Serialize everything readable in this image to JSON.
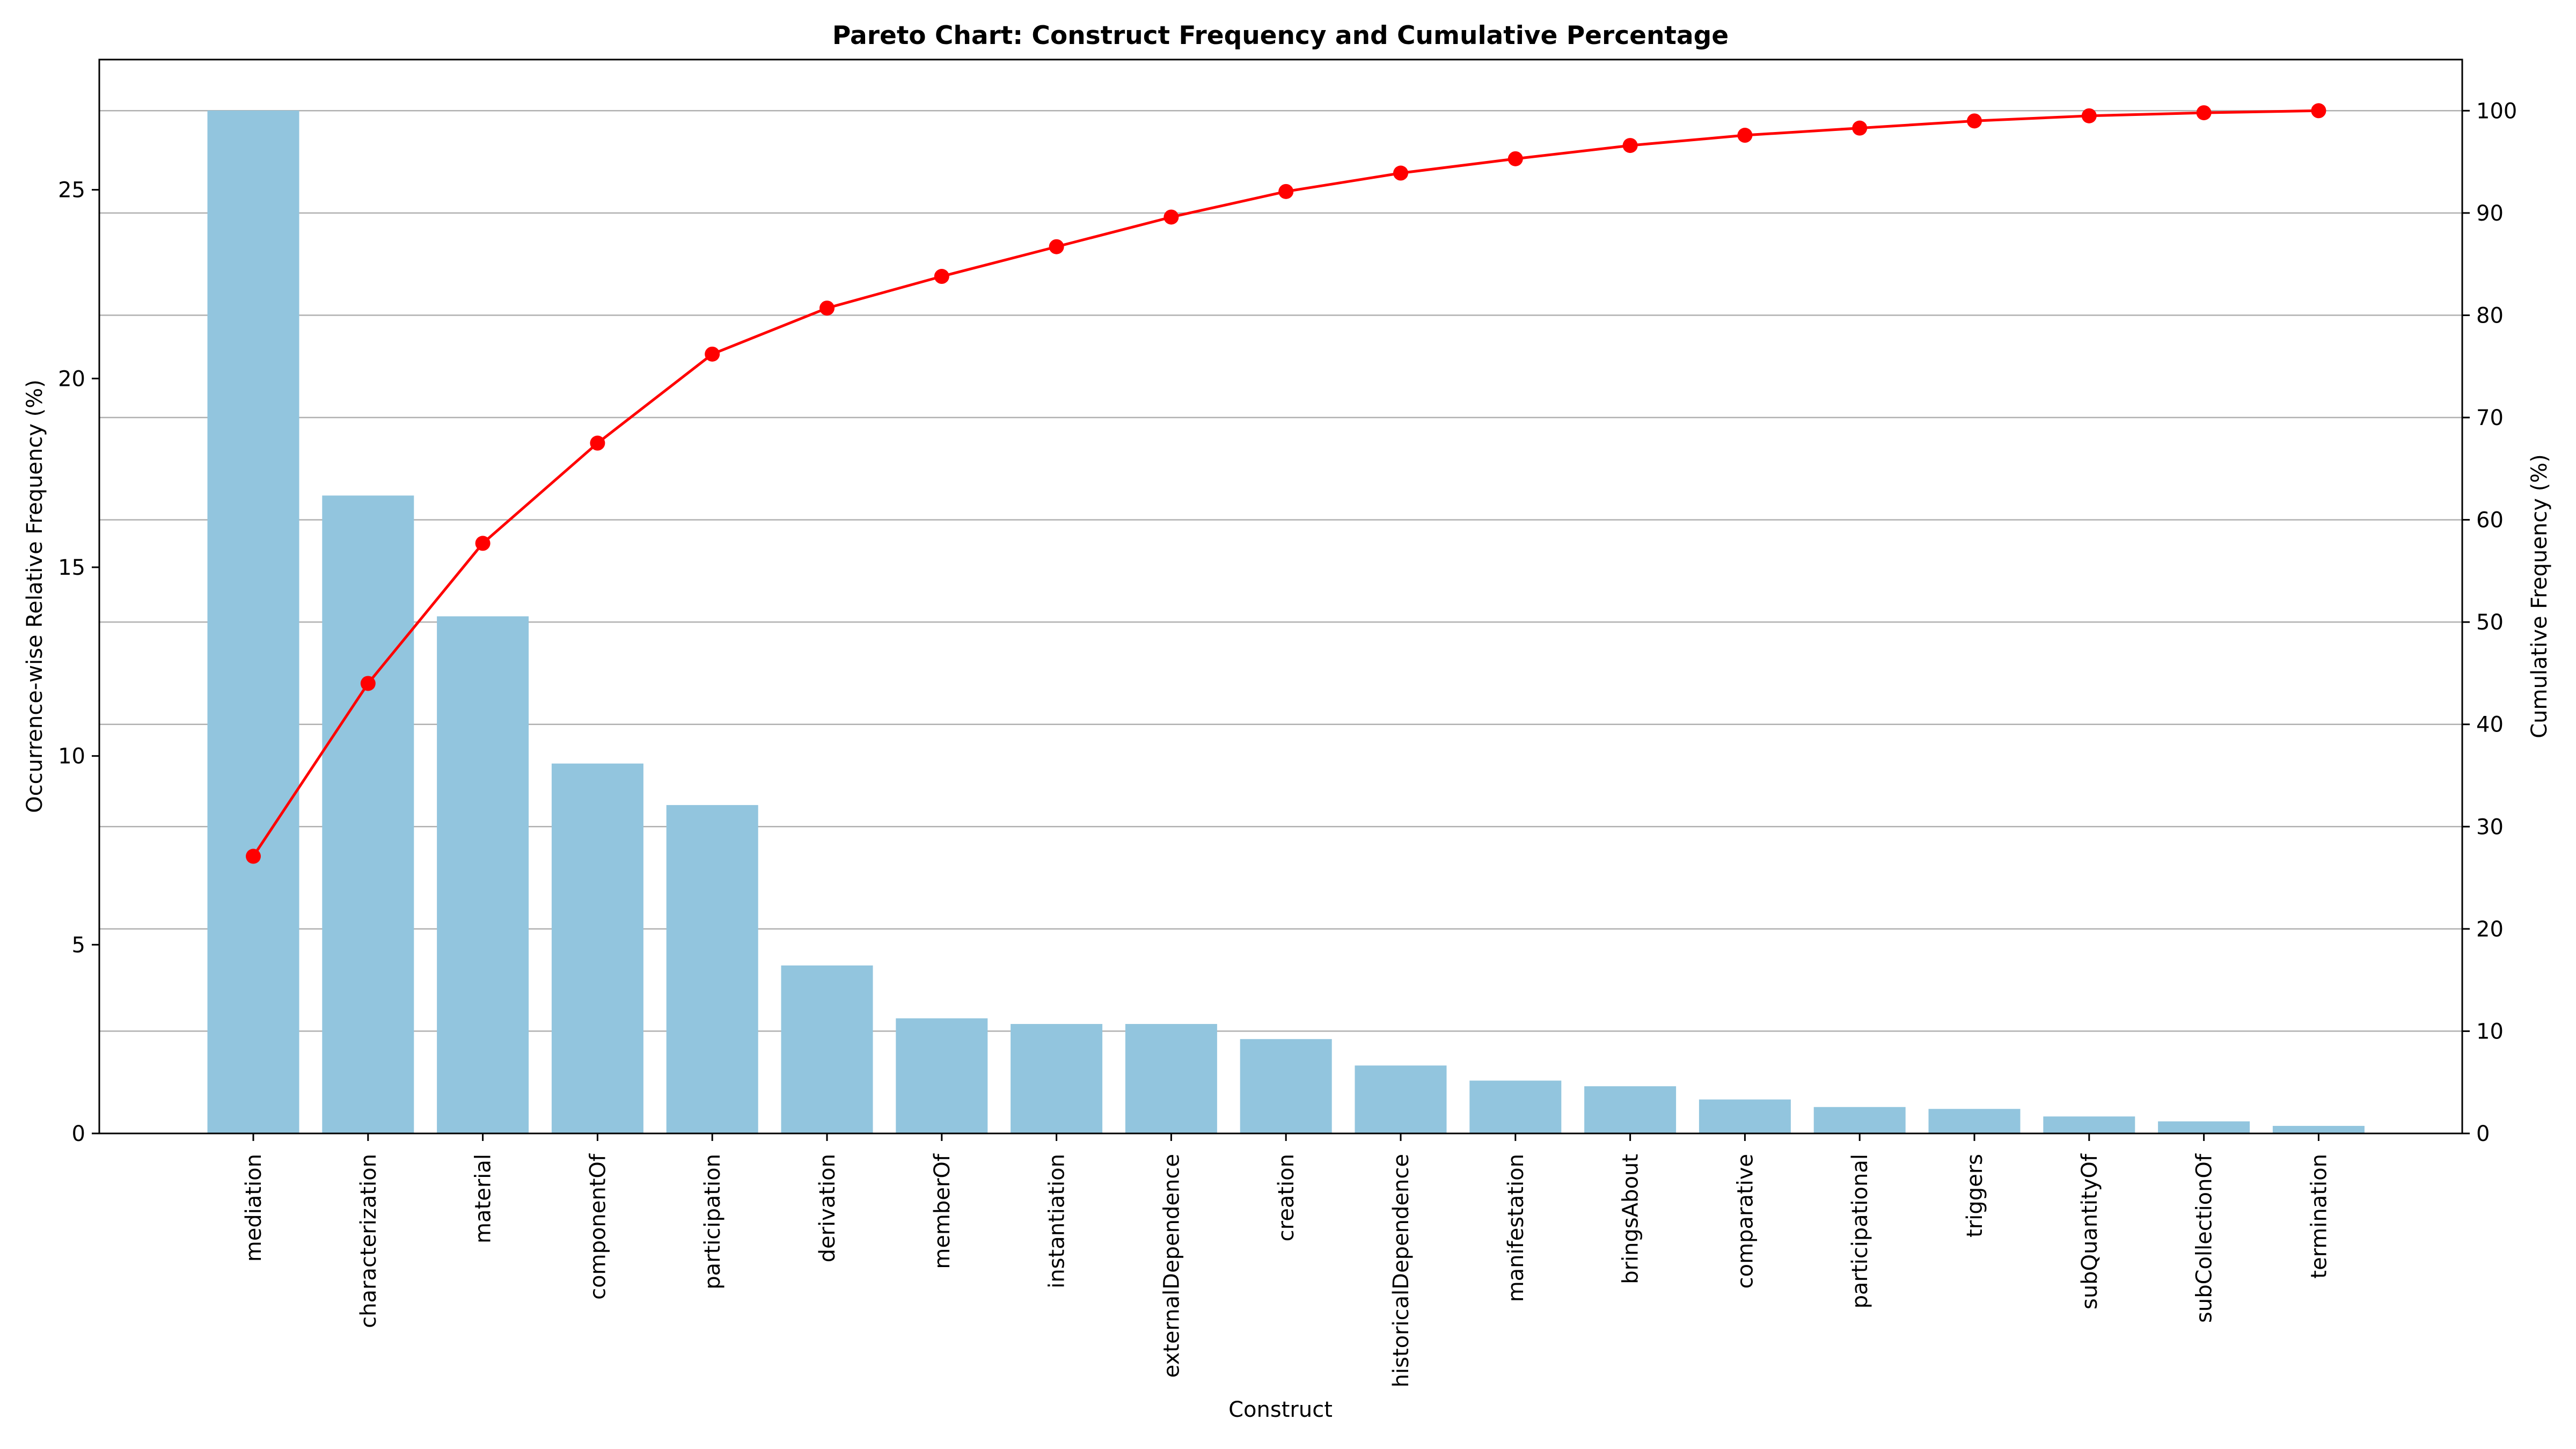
{
  "chart_data": {
    "type": "bar",
    "title": "Pareto Chart: Construct Frequency and Cumulative Percentage",
    "xlabel": "Construct",
    "ylabel": "Occurrence-wise Relative Frequency (%)",
    "y2label": "Cumulative Frequency (%)",
    "categories": [
      "mediation",
      "characterization",
      "material",
      "componentOf",
      "participation",
      "derivation",
      "memberOf",
      "instantiation",
      "externalDependence",
      "creation",
      "historicalDependence",
      "manifestation",
      "bringsAbout",
      "comparative",
      "participational",
      "triggers",
      "subQuantityOf",
      "subCollectionOf",
      "termination"
    ],
    "series": [
      {
        "axis": "left",
        "type": "bar",
        "color": "#92c5de",
        "values": [
          27.1,
          16.9,
          13.7,
          9.8,
          8.7,
          4.45,
          3.05,
          2.9,
          2.9,
          2.5,
          1.8,
          1.4,
          1.25,
          0.9,
          0.7,
          0.65,
          0.45,
          0.32,
          0.2
        ]
      },
      {
        "axis": "right",
        "type": "line",
        "color": "#ff0000",
        "marker": "circle",
        "values": [
          27.1,
          44.0,
          57.7,
          67.5,
          76.2,
          80.7,
          83.8,
          86.7,
          89.6,
          92.1,
          93.9,
          95.3,
          96.6,
          97.6,
          98.3,
          99.0,
          99.5,
          99.8,
          100.0
        ]
      }
    ],
    "ylim": [
      0,
      28.45
    ],
    "y2lim": [
      0,
      105
    ],
    "yticks": [
      0,
      5,
      10,
      15,
      20,
      25
    ],
    "y2ticks": [
      0,
      10,
      20,
      30,
      40,
      50,
      60,
      70,
      80,
      90,
      100
    ],
    "grid": "horizontal lines at right-axis ticks",
    "bar_color": "#92c5de",
    "line_color": "#ff0000"
  }
}
